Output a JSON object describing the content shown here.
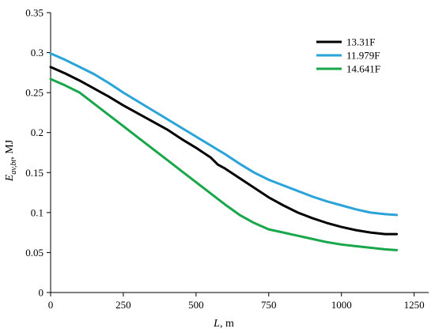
{
  "chart_data": {
    "type": "line",
    "xlabel": "L, m",
    "ylabel": "E_av,bt, MJ",
    "ylabel_parts": {
      "main": "E",
      "sub": "av,bt",
      "suffix": ", MJ"
    },
    "xlabel_parts": {
      "var": "L",
      "suffix": ", m"
    },
    "xlim": [
      0,
      1300
    ],
    "ylim": [
      0,
      0.35
    ],
    "xticks": [
      0,
      250,
      500,
      750,
      1000,
      1250
    ],
    "yticks": [
      0,
      0.05,
      0.1,
      0.15,
      0.2,
      0.25,
      0.3,
      0.35
    ],
    "xtick_labels": [
      "0",
      "250",
      "500",
      "750",
      "1000",
      "1250"
    ],
    "ytick_labels": [
      "0",
      "0.05",
      "0.1",
      "0.15",
      "0.2",
      "0.25",
      "0.3",
      "0.35"
    ],
    "grid": false,
    "legend_position": "top-right",
    "series": [
      {
        "name": "13.31F",
        "color": "#000000",
        "x": [
          0,
          50,
          100,
          150,
          200,
          250,
          300,
          350,
          400,
          450,
          500,
          550,
          575,
          600,
          650,
          700,
          750,
          800,
          850,
          900,
          950,
          1000,
          1050,
          1100,
          1150,
          1190
        ],
        "y": [
          0.282,
          0.274,
          0.265,
          0.255,
          0.245,
          0.234,
          0.224,
          0.214,
          0.204,
          0.192,
          0.181,
          0.169,
          0.16,
          0.155,
          0.143,
          0.131,
          0.119,
          0.109,
          0.1,
          0.093,
          0.087,
          0.082,
          0.078,
          0.075,
          0.073,
          0.073
        ]
      },
      {
        "name": "11.979F",
        "color": "#2aa3d8",
        "x": [
          0,
          50,
          100,
          150,
          200,
          250,
          300,
          350,
          400,
          450,
          500,
          550,
          600,
          650,
          700,
          750,
          800,
          850,
          900,
          950,
          1000,
          1050,
          1100,
          1150,
          1190
        ],
        "y": [
          0.299,
          0.291,
          0.282,
          0.273,
          0.262,
          0.25,
          0.239,
          0.228,
          0.217,
          0.206,
          0.195,
          0.184,
          0.173,
          0.161,
          0.15,
          0.141,
          0.134,
          0.127,
          0.12,
          0.114,
          0.109,
          0.104,
          0.1,
          0.098,
          0.097
        ]
      },
      {
        "name": "14.641F",
        "color": "#1aa64b",
        "x": [
          0,
          50,
          100,
          150,
          200,
          250,
          300,
          350,
          400,
          450,
          500,
          550,
          600,
          650,
          700,
          750,
          800,
          850,
          900,
          950,
          1000,
          1050,
          1100,
          1150,
          1190
        ],
        "y": [
          0.267,
          0.259,
          0.25,
          0.236,
          0.222,
          0.208,
          0.194,
          0.18,
          0.166,
          0.152,
          0.138,
          0.124,
          0.11,
          0.097,
          0.087,
          0.079,
          0.075,
          0.071,
          0.067,
          0.063,
          0.06,
          0.058,
          0.056,
          0.054,
          0.053
        ]
      }
    ]
  }
}
